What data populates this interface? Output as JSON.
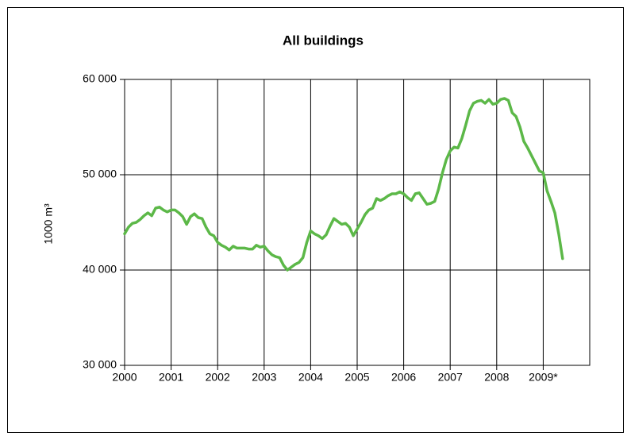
{
  "chart_data": {
    "type": "line",
    "title": "All buildings",
    "y_label": "1000 m³",
    "categories": [
      "2000",
      null,
      null,
      null,
      null,
      null,
      null,
      null,
      null,
      null,
      null,
      null,
      "2001",
      null,
      null,
      null,
      null,
      null,
      null,
      null,
      null,
      null,
      null,
      null,
      "2002",
      null,
      null,
      null,
      null,
      null,
      null,
      null,
      null,
      null,
      null,
      null,
      "2003",
      null,
      null,
      null,
      null,
      null,
      null,
      null,
      null,
      null,
      null,
      null,
      "2004",
      null,
      null,
      null,
      null,
      null,
      null,
      null,
      null,
      null,
      null,
      null,
      "2005",
      null,
      null,
      null,
      null,
      null,
      null,
      null,
      null,
      null,
      null,
      null,
      "2006",
      null,
      null,
      null,
      null,
      null,
      null,
      null,
      null,
      null,
      null,
      null,
      "2007",
      null,
      null,
      null,
      null,
      null,
      null,
      null,
      null,
      null,
      null,
      null,
      "2008",
      null,
      null,
      null,
      null,
      null,
      null,
      null,
      null,
      null,
      null,
      null,
      "2009*",
      null,
      null,
      null,
      null,
      null,
      null,
      null,
      null,
      null,
      null,
      null
    ],
    "series": [
      {
        "name": "All buildings",
        "color": "#5cb848",
        "values": [
          43800,
          44500,
          44900,
          45000,
          45300,
          45700,
          46000,
          45700,
          46500,
          46600,
          46300,
          46100,
          46300,
          46300,
          46000,
          45600,
          44800,
          45600,
          45900,
          45500,
          45400,
          44500,
          43800,
          43600,
          42900,
          42600,
          42400,
          42100,
          42500,
          42300,
          42300,
          42300,
          42200,
          42200,
          42600,
          42400,
          42500,
          42000,
          41600,
          41400,
          41300,
          40500,
          40000,
          40300,
          40600,
          40800,
          41300,
          42900,
          44100,
          43800,
          43600,
          43300,
          43700,
          44600,
          45400,
          45100,
          44800,
          44900,
          44500,
          43600,
          44300,
          45000,
          45800,
          46300,
          46500,
          47500,
          47300,
          47500,
          47800,
          48000,
          48000,
          48200,
          48000,
          47600,
          47300,
          48000,
          48100,
          47500,
          46900,
          47000,
          47200,
          48500,
          50200,
          51600,
          52500,
          52900,
          52800,
          53800,
          55200,
          56700,
          57500,
          57700,
          57800,
          57500,
          57900,
          57400,
          57500,
          57900,
          58000,
          57800,
          56500,
          56100,
          55000,
          53500,
          52800,
          52000,
          51200,
          50400,
          50200,
          48300,
          47200,
          46000,
          43800,
          41200,
          null,
          null,
          null,
          null,
          null,
          null
        ]
      }
    ],
    "ylim": [
      30000,
      60000
    ],
    "yticks": [
      {
        "value": 30000,
        "label": "30 000"
      },
      {
        "value": 40000,
        "label": "40 000"
      },
      {
        "value": 50000,
        "label": "50 000"
      },
      {
        "value": 60000,
        "label": "60 000"
      }
    ],
    "grid": true
  }
}
